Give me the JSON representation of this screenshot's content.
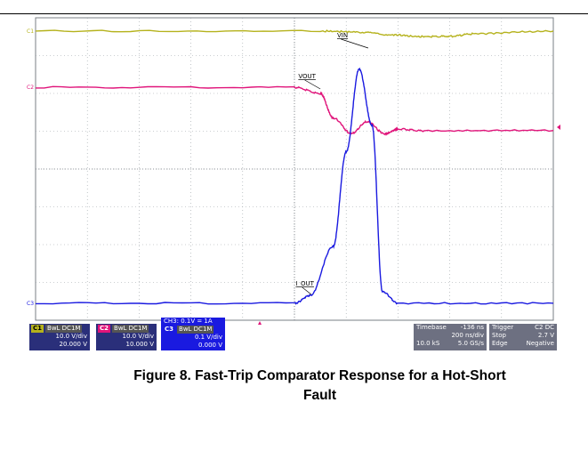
{
  "chart_data": {
    "type": "line",
    "x_range": [
      0,
      2000
    ],
    "x_unit": "ns",
    "grid_divisions": [
      10,
      8
    ],
    "grid": true,
    "series": [
      {
        "name": "VIN",
        "channel": "C1",
        "color": "#b5b21c",
        "scale": "10.0 V/div",
        "offset": "20.000 V",
        "x": [
          0,
          1100,
          1250,
          1380,
          1500,
          1600,
          1700,
          2000
        ],
        "y": [
          28.9,
          28.9,
          28.6,
          27.9,
          27.4,
          27.5,
          28.2,
          28.9
        ]
      },
      {
        "name": "VOUT",
        "channel": "C2",
        "color": "#e0147a",
        "scale": "10.0 V/div",
        "offset": "10.000 V",
        "x": [
          0,
          1000,
          1100,
          1150,
          1220,
          1280,
          1350,
          1400,
          1500,
          2000
        ],
        "y": [
          22.1,
          22.1,
          20.5,
          14,
          9.9,
          13,
          9.8,
          11.1,
          10.6,
          10.7
        ]
      },
      {
        "name": "I_OUT",
        "channel": "C3",
        "color": "#1a1ae0",
        "scale": "0.1 V/div",
        "note": "CH3: 0.1V = 1A",
        "x": [
          0,
          1000,
          1060,
          1150,
          1200,
          1250,
          1300,
          1340,
          1400,
          2000
        ],
        "y": [
          0.0,
          0.0,
          0.02,
          0.15,
          0.4,
          0.62,
          0.47,
          0.03,
          0.0,
          0.0
        ]
      }
    ],
    "annotations": [
      "VIN",
      "VOUT",
      "I_OUT"
    ],
    "channel_markers": [
      "C1",
      "C2",
      "C3"
    ]
  },
  "panels": {
    "c1": {
      "label": "C1",
      "flags": "BwL DC1M",
      "scale": "10.0 V/div",
      "offset": "20.000 V"
    },
    "c2": {
      "label": "C2",
      "flags": "BwL DC1M",
      "scale": "10.0 V/div",
      "offset": "10.000 V"
    },
    "c3": {
      "label": "C3",
      "flags": "BwL DC1M",
      "note": "CH3: 0.1V = 1A",
      "scale": "0.1 V/div",
      "offset": "0.000 V"
    }
  },
  "timebase": {
    "label": "Timebase",
    "delay": "-136 ns",
    "scale": "200 ns/div",
    "samples": "10.0 kS",
    "rate": "5.0 GS/s"
  },
  "trigger": {
    "label": "Trigger",
    "source": "C2 DC",
    "mode": "Stop",
    "level": "2.7 V",
    "type": "Edge",
    "slope": "Negative"
  },
  "caption": {
    "line1": "Figure 8. Fast-Trip Comparator Response for a Hot-Short",
    "line2": "Fault"
  },
  "colors": {
    "grid_bg": "#ffffff",
    "grid_line": "#9aa0a6",
    "panel_bg": "#2a2f7a",
    "tb_bg": "#6d7081"
  }
}
